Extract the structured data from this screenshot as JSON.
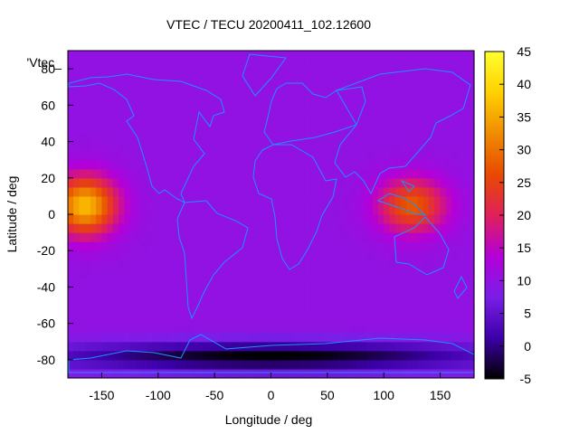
{
  "chart_data": {
    "type": "heatmap",
    "title": "VTEC / TECU 20200411_102.12600",
    "xlabel": "Longitude / deg",
    "ylabel": "Latitude / deg",
    "legend_label": "'Vtec_",
    "xlim": [
      -180,
      180
    ],
    "ylim": [
      -90,
      90
    ],
    "x_ticks": [
      -150,
      -100,
      -50,
      0,
      50,
      100,
      150
    ],
    "y_ticks": [
      -80,
      -60,
      -40,
      -20,
      0,
      20,
      40,
      60,
      80
    ],
    "colorbar": {
      "min": -5,
      "max": 45,
      "ticks": [
        -5,
        0,
        5,
        10,
        15,
        20,
        25,
        30,
        35,
        40,
        45
      ]
    },
    "grid": false,
    "colormap": [
      "#000000",
      "#3d00a8",
      "#7a1ee8",
      "#b400d8",
      "#e0205a",
      "#e84a00",
      "#f08c00",
      "#ffd000",
      "#ffff30"
    ],
    "background_level": 10,
    "features": [
      {
        "region": "eastern Pacific",
        "lon": -165,
        "lat": 5,
        "lon_width": 28,
        "lat_width": 16,
        "peak": 37
      },
      {
        "region": "western Pacific",
        "lon": 125,
        "lat": 5,
        "lon_width": 30,
        "lat_width": 15,
        "peak": 28
      },
      {
        "region": "southern high latitudes",
        "lon": 0,
        "lat": -78,
        "lon_width": 200,
        "lat_width": 8,
        "peak": -5
      }
    ]
  }
}
